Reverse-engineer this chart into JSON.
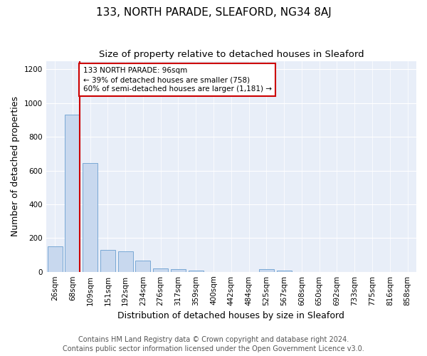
{
  "title": "133, NORTH PARADE, SLEAFORD, NG34 8AJ",
  "subtitle": "Size of property relative to detached houses in Sleaford",
  "xlabel": "Distribution of detached houses by size in Sleaford",
  "ylabel": "Number of detached properties",
  "categories": [
    "26sqm",
    "68sqm",
    "109sqm",
    "151sqm",
    "192sqm",
    "234sqm",
    "276sqm",
    "317sqm",
    "359sqm",
    "400sqm",
    "442sqm",
    "484sqm",
    "525sqm",
    "567sqm",
    "608sqm",
    "650sqm",
    "692sqm",
    "733sqm",
    "775sqm",
    "816sqm",
    "858sqm"
  ],
  "values": [
    150,
    930,
    645,
    130,
    120,
    65,
    20,
    15,
    5,
    0,
    0,
    0,
    15,
    5,
    0,
    0,
    0,
    0,
    0,
    0,
    0
  ],
  "bar_color": "#c8d8ee",
  "bar_edge_color": "#6a9fd0",
  "annotation_text_line1": "133 NORTH PARADE: 96sqm",
  "annotation_text_line2": "← 39% of detached houses are smaller (758)",
  "annotation_text_line3": "60% of semi-detached houses are larger (1,181) →",
  "annotation_box_color": "#ffffff",
  "annotation_border_color": "#cc0000",
  "red_line_color": "#cc0000",
  "ylim": [
    0,
    1250
  ],
  "yticks": [
    0,
    200,
    400,
    600,
    800,
    1000,
    1200
  ],
  "footer_line1": "Contains HM Land Registry data © Crown copyright and database right 2024.",
  "footer_line2": "Contains public sector information licensed under the Open Government Licence v3.0.",
  "bg_color": "#ffffff",
  "plot_bg_color": "#e8eef8",
  "title_fontsize": 11,
  "subtitle_fontsize": 9.5,
  "axis_label_fontsize": 9,
  "tick_fontsize": 7.5,
  "footer_fontsize": 7
}
